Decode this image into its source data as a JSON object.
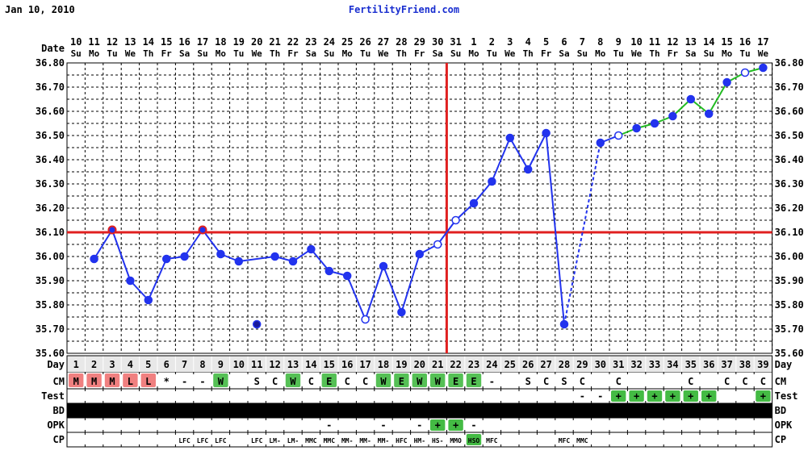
{
  "header": {
    "date": "Jan 10, 2010",
    "site": "FertilityFriend.com"
  },
  "chart_data": {
    "type": "line",
    "ylim": [
      35.6,
      36.8
    ],
    "y_ticks": [
      "35.60",
      "35.70",
      "35.80",
      "35.90",
      "36.00",
      "36.10",
      "36.20",
      "36.30",
      "36.40",
      "36.50",
      "36.60",
      "36.70",
      "36.80"
    ],
    "row_labels": {
      "date": "Date",
      "day": "Day",
      "cm": "CM",
      "test": "Test",
      "bd": "BD",
      "opk": "OPK",
      "cp": "CP"
    },
    "dates": [
      "10",
      "11",
      "12",
      "13",
      "14",
      "15",
      "16",
      "17",
      "18",
      "19",
      "20",
      "21",
      "22",
      "23",
      "24",
      "25",
      "26",
      "27",
      "28",
      "29",
      "30",
      "31",
      "1",
      "2",
      "3",
      "4",
      "5",
      "6",
      "7",
      "8",
      "9",
      "10",
      "11",
      "12",
      "13",
      "14",
      "15",
      "16",
      "17"
    ],
    "weekdays": [
      "Su",
      "Mo",
      "Tu",
      "We",
      "Th",
      "Fr",
      "Sa",
      "Su",
      "Mo",
      "Tu",
      "We",
      "Th",
      "Fr",
      "Sa",
      "Su",
      "Mo",
      "Tu",
      "We",
      "Th",
      "Fr",
      "Sa",
      "Su",
      "Mo",
      "Tu",
      "We",
      "Th",
      "Fr",
      "Sa",
      "Su",
      "Mo",
      "Tu",
      "We",
      "Th",
      "Fr",
      "Sa",
      "Su",
      "Mo",
      "Tu",
      "We"
    ],
    "cycle_days": [
      1,
      2,
      3,
      4,
      5,
      6,
      7,
      8,
      9,
      10,
      11,
      12,
      13,
      14,
      15,
      16,
      17,
      18,
      19,
      20,
      21,
      22,
      23,
      24,
      25,
      26,
      27,
      28,
      29,
      30,
      31,
      32,
      33,
      34,
      35,
      36,
      37,
      38,
      39
    ],
    "temps": [
      null,
      35.99,
      36.11,
      35.9,
      35.82,
      35.99,
      36.0,
      36.11,
      36.01,
      35.98,
      35.72,
      36.0,
      35.98,
      36.03,
      35.94,
      35.92,
      35.74,
      35.96,
      35.77,
      36.01,
      36.05,
      36.15,
      36.22,
      36.31,
      36.49,
      36.36,
      36.51,
      35.72,
      null,
      36.47,
      36.5,
      36.53,
      36.55,
      36.58,
      36.65,
      36.59,
      36.72,
      36.76,
      36.78
    ],
    "point_style": [
      "none",
      "filled",
      "filled",
      "filled",
      "filled",
      "filled",
      "filled",
      "filled",
      "filled",
      "filled",
      "discarded",
      "filled",
      "filled",
      "filled",
      "filled",
      "filled",
      "hollow",
      "filled",
      "filled",
      "filled",
      "hollow",
      "hollow",
      "filled",
      "filled",
      "filled",
      "filled",
      "filled",
      "filled",
      "none",
      "filled",
      "hollow",
      "filled",
      "filled",
      "filled",
      "filled",
      "filled",
      "filled",
      "hollow",
      "filled"
    ],
    "coverline": 36.1,
    "ovulation_day": 21,
    "cm": [
      "M",
      "M",
      "M",
      "L",
      "L",
      "*",
      "-",
      "-",
      "W",
      "",
      "S",
      "C",
      "W",
      "C",
      "E",
      "C",
      "C",
      "W",
      "E",
      "W",
      "W",
      "E",
      "E",
      "-",
      "",
      "S",
      "C",
      "S",
      "C",
      "",
      "C",
      "",
      "",
      "",
      "C",
      "",
      "C",
      "C",
      "C"
    ],
    "test": [
      "",
      "",
      "",
      "",
      "",
      "",
      "",
      "",
      "",
      "",
      "",
      "",
      "",
      "",
      "",
      "",
      "",
      "",
      "",
      "",
      "",
      "",
      "",
      "",
      "",
      "",
      "",
      "",
      "-",
      "-",
      "+",
      "+",
      "+",
      "+",
      "+",
      "+",
      "",
      "",
      "+"
    ],
    "opk": [
      "",
      "",
      "",
      "",
      "",
      "",
      "",
      "",
      "",
      "",
      "",
      "",
      "",
      "",
      "-",
      "",
      "",
      "-",
      "",
      "-",
      "+",
      "+",
      "-",
      "",
      "",
      "",
      "",
      "",
      "",
      "",
      "",
      "",
      "",
      "",
      "",
      "",
      "",
      "",
      ""
    ],
    "cp": [
      "",
      "",
      "",
      "",
      "",
      "",
      "LFC",
      "LFC",
      "LFC",
      "",
      "LFC",
      "LM-",
      "LM-",
      "MMC",
      "MMC",
      "MM-",
      "MM-",
      "MM-",
      "HFC",
      "HM-",
      "HS-",
      "MMO",
      "HSO",
      "MFC",
      "",
      "",
      "",
      "MFC",
      "MMC",
      "",
      "",
      "",
      "",
      "",
      "",
      "",
      "",
      "",
      ""
    ]
  },
  "colors": {
    "temp_line": "#2233ee",
    "post_line": "#22bb22",
    "coverline": "#e02020",
    "cm_pink": "#f08080",
    "cm_green": "#55c055",
    "test_green": "#44bb44",
    "grid": "#000000"
  }
}
